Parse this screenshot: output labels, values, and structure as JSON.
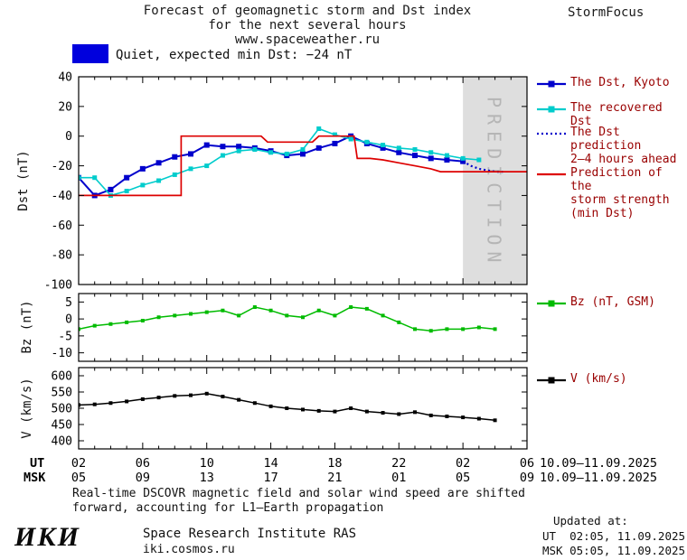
{
  "header": {
    "title_line1": "Forecast of geomagnetic storm and Dst index",
    "title_line2": "for the next several hours",
    "title_line3": "www.spaceweather.ru",
    "brand": "StormFocus"
  },
  "status": {
    "level": "Quiet",
    "label": "Quiet, expected min Dst: −24 nT",
    "color": "#0000dd"
  },
  "legend": {
    "text_color": "#990000",
    "items": [
      {
        "label": "The Dst, Kyoto",
        "color": "#0000cc",
        "line": "solid",
        "marker": true
      },
      {
        "label": "The recovered Dst",
        "color": "#00cccc",
        "line": "solid",
        "marker": true
      },
      {
        "label": "The Dst prediction\n2–4 hours ahead",
        "color": "#0000cc",
        "line": "dotted",
        "marker": false
      },
      {
        "label": "Prediction of the\nstorm strength\n(min Dst)",
        "color": "#dd0000",
        "line": "solid",
        "marker": false
      },
      {
        "label": "Bz (nT, GSM)",
        "color": "#00bb00",
        "line": "solid",
        "marker": true
      },
      {
        "label": "V (km/s)",
        "color": "#000000",
        "line": "solid",
        "marker": true
      }
    ]
  },
  "axes": {
    "ut_label": "UT",
    "msk_label": "MSK",
    "ut_ticks": [
      "02",
      "06",
      "10",
      "14",
      "18",
      "22",
      "02",
      "06"
    ],
    "msk_ticks": [
      "05",
      "09",
      "13",
      "17",
      "21",
      "01",
      "05",
      "09"
    ],
    "date_ut": "10.09–11.09.2025",
    "date_msk": "10.09–11.09.2025"
  },
  "footer": {
    "note_line1": "Real-time DSCOVR magnetic field and solar wind speed are shifted",
    "note_line2": "forward, accounting for L1–Earth propagation",
    "updated_label": "Updated at:",
    "updated_ut": "UT  02:05, 11.09.2025",
    "updated_msk": "MSK 05:05, 11.09.2025",
    "logo": "ИКИ",
    "institute": "Space Research Institute RAS",
    "site": "iki.cosmos.ru"
  },
  "chart_data": [
    {
      "type": "line",
      "name": "dst-panel",
      "title": "Dst index observed, recovered and predicted",
      "ylabel": "Dst (nT)",
      "ylim": [
        -100,
        40
      ],
      "yticks": [
        40,
        20,
        0,
        -20,
        -40,
        -60,
        -80,
        -100
      ],
      "xlim": [
        2,
        30
      ],
      "xticks": [
        2,
        6,
        10,
        14,
        18,
        22,
        26,
        30
      ],
      "prediction_region": {
        "start_hour": 26,
        "end_hour": 30,
        "label": "PREDICTION"
      },
      "series": [
        {
          "name": "The Dst, Kyoto",
          "color": "#0000cc",
          "marker": true,
          "marker_size": 6,
          "width": 2,
          "x": [
            2,
            3,
            4,
            5,
            6,
            7,
            8,
            9,
            10,
            11,
            12,
            13,
            14,
            15,
            16,
            17,
            18,
            19,
            20,
            21,
            22,
            23,
            24,
            25,
            26
          ],
          "y": [
            -28,
            -40,
            -36,
            -28,
            -22,
            -18,
            -14,
            -12,
            -6,
            -7,
            -7,
            -8,
            -10,
            -13,
            -12,
            -8,
            -5,
            0,
            -5,
            -8,
            -11,
            -13,
            -15,
            -16,
            -17
          ]
        },
        {
          "name": "The recovered Dst",
          "color": "#00cccc",
          "marker": true,
          "marker_size": 5,
          "width": 1.6,
          "x": [
            2,
            3,
            4,
            5,
            6,
            7,
            8,
            9,
            10,
            11,
            12,
            13,
            14,
            15,
            16,
            17,
            18,
            19,
            20,
            21,
            22,
            23,
            24,
            25,
            26,
            27
          ],
          "y": [
            -28,
            -28,
            -40,
            -37,
            -33,
            -30,
            -26,
            -22,
            -20,
            -13,
            -10,
            -9,
            -11,
            -12,
            -9,
            5,
            1,
            -2,
            -4,
            -6,
            -8,
            -9,
            -11,
            -13,
            -15,
            -16
          ]
        },
        {
          "name": "The Dst prediction 2–4 hours ahead",
          "color": "#0000cc",
          "style": "dotted",
          "width": 2.2,
          "x": [
            26,
            26.5,
            27,
            27.5,
            28,
            28.5
          ],
          "y": [
            -17,
            -20,
            -22,
            -23,
            -24,
            -24
          ]
        },
        {
          "name": "Prediction of the storm strength (min Dst)",
          "color": "#dd0000",
          "width": 1.7,
          "x": [
            2,
            8.4,
            8.4,
            13.4,
            13.8,
            16.6,
            17,
            19.2,
            19.4,
            20.2,
            21,
            22,
            23,
            24,
            24.6,
            30
          ],
          "y": [
            -40,
            -40,
            0,
            0,
            -4,
            -4,
            0,
            0,
            -15,
            -15,
            -16,
            -18,
            -20,
            -22,
            -24,
            -24
          ]
        }
      ]
    },
    {
      "type": "line",
      "name": "bz-panel",
      "title": "Bz component of interplanetary magnetic field",
      "ylabel": "Bz (nT)",
      "ylim": [
        -12.5,
        7.5
      ],
      "yticks": [
        5,
        0,
        -5,
        -10
      ],
      "xlim": [
        2,
        30
      ],
      "xticks": [
        2,
        6,
        10,
        14,
        18,
        22,
        26,
        30
      ],
      "series": [
        {
          "name": "Bz (nT, GSM)",
          "color": "#00bb00",
          "marker": true,
          "marker_size": 4,
          "width": 1.5,
          "x": [
            2,
            3,
            4,
            5,
            6,
            7,
            8,
            9,
            10,
            11,
            12,
            13,
            14,
            15,
            16,
            17,
            18,
            19,
            20,
            21,
            22,
            23,
            24,
            25,
            26,
            27,
            28
          ],
          "y": [
            -3,
            -2,
            -1.5,
            -1,
            -0.5,
            0.5,
            1,
            1.5,
            2,
            2.5,
            1,
            3.5,
            2.5,
            1,
            0.5,
            2.5,
            1,
            3.5,
            3,
            1,
            -1,
            -3,
            -3.5,
            -3,
            -3,
            -2.5,
            -3
          ]
        }
      ]
    },
    {
      "type": "line",
      "name": "v-panel",
      "title": "Solar wind speed",
      "ylabel": "V (km/s)",
      "ylim": [
        375,
        625
      ],
      "yticks": [
        600,
        550,
        500,
        450,
        400
      ],
      "xlim": [
        2,
        30
      ],
      "xticks": [
        2,
        6,
        10,
        14,
        18,
        22,
        26,
        30
      ],
      "series": [
        {
          "name": "V (km/s)",
          "color": "#000000",
          "marker": true,
          "marker_size": 4,
          "width": 1.5,
          "x": [
            2,
            3,
            4,
            5,
            6,
            7,
            8,
            9,
            10,
            11,
            12,
            13,
            14,
            15,
            16,
            17,
            18,
            19,
            20,
            21,
            22,
            23,
            24,
            25,
            26,
            27,
            28
          ],
          "y": [
            510,
            512,
            516,
            521,
            528,
            533,
            538,
            540,
            545,
            536,
            526,
            516,
            506,
            500,
            496,
            492,
            490,
            500,
            490,
            486,
            482,
            488,
            478,
            475,
            472,
            468,
            463
          ]
        }
      ]
    }
  ]
}
